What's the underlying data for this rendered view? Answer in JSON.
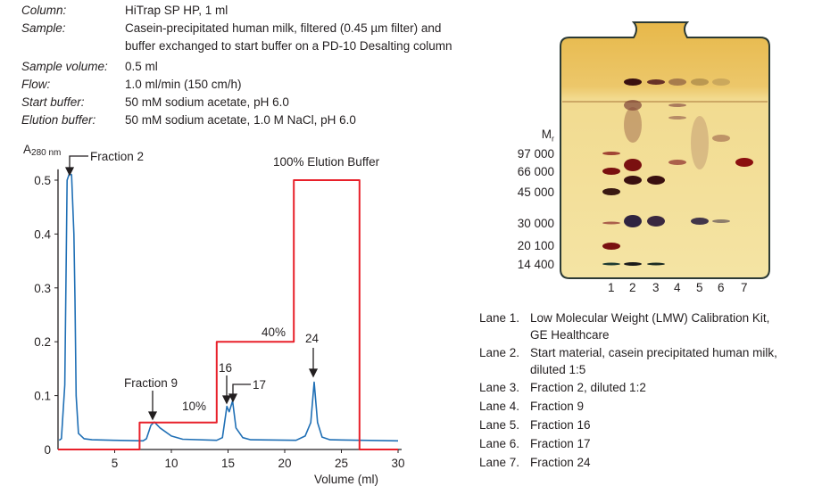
{
  "method": [
    {
      "label": "Column:",
      "value": [
        "HiTrap SP HP, 1 ml"
      ]
    },
    {
      "label": "Sample:",
      "value": [
        "Casein-precipitated human milk, filtered (0.45 µm filter) and",
        "buffer exchanged to start buffer on a PD-10 Desalting column"
      ]
    },
    {
      "label": "Sample volume:",
      "value": [
        "0.5 ml"
      ]
    },
    {
      "label": "Flow:",
      "value": [
        "1.0 ml/min (150 cm/h)"
      ]
    },
    {
      "label": "Start buffer:",
      "value": [
        "50 mM sodium acetate, pH 6.0"
      ]
    },
    {
      "label": "Elution buffer:",
      "value": [
        "50 mM sodium acetate, 1.0 M NaCl, pH 6.0"
      ]
    }
  ],
  "chart_data": {
    "type": "line",
    "ylabel": "A280 nm",
    "ylabel_main": "A",
    "ylabel_sub": "280 nm",
    "xlabel": "Volume (ml)",
    "xlim": [
      0,
      30
    ],
    "ylim": [
      0,
      0.52
    ],
    "xticks": [
      5,
      10,
      15,
      20,
      25,
      30
    ],
    "yticks": [
      0,
      0.1,
      0.2,
      0.3,
      0.4,
      0.5
    ],
    "ytick_labels": [
      "0",
      "0.1",
      "0.2",
      "0.3",
      "0.4",
      "0.5"
    ],
    "grid": false,
    "series": [
      {
        "color": "#1f6fb5",
        "points": [
          [
            0.1,
            0.017
          ],
          [
            0.3,
            0.02
          ],
          [
            0.6,
            0.12
          ],
          [
            0.8,
            0.5
          ],
          [
            1.0,
            0.512
          ],
          [
            1.2,
            0.51
          ],
          [
            1.4,
            0.4
          ],
          [
            1.5,
            0.28
          ],
          [
            1.6,
            0.1
          ],
          [
            1.8,
            0.03
          ],
          [
            2.3,
            0.02
          ],
          [
            3,
            0.018
          ],
          [
            5,
            0.017
          ],
          [
            7.5,
            0.016
          ],
          [
            7.8,
            0.02
          ],
          [
            8.2,
            0.045
          ],
          [
            8.5,
            0.051
          ],
          [
            9,
            0.04
          ],
          [
            10,
            0.025
          ],
          [
            11,
            0.019
          ],
          [
            14,
            0.017
          ],
          [
            14.5,
            0.022
          ],
          [
            14.9,
            0.08
          ],
          [
            15.1,
            0.07
          ],
          [
            15.4,
            0.09
          ],
          [
            15.7,
            0.04
          ],
          [
            16.3,
            0.022
          ],
          [
            17,
            0.018
          ],
          [
            21,
            0.017
          ],
          [
            21.8,
            0.025
          ],
          [
            22.3,
            0.05
          ],
          [
            22.6,
            0.125
          ],
          [
            22.9,
            0.05
          ],
          [
            23.3,
            0.023
          ],
          [
            24,
            0.018
          ],
          [
            30,
            0.016
          ]
        ]
      },
      {
        "color": "#e8202a",
        "points": [
          [
            0,
            0
          ],
          [
            7.2,
            0
          ],
          [
            7.2,
            0.05
          ],
          [
            14.0,
            0.05
          ],
          [
            14.0,
            0.2
          ],
          [
            20.8,
            0.2
          ],
          [
            20.8,
            0.5
          ],
          [
            26.6,
            0.5
          ],
          [
            26.6,
            0
          ],
          [
            30,
            0
          ]
        ]
      }
    ],
    "annotations": {
      "fraction2": "Fraction 2",
      "fraction9": "Fraction 9",
      "f16": "16",
      "f17": "17",
      "f24": "24",
      "step10": "10%",
      "step40": "40%",
      "step100": "100% Elution Buffer"
    }
  },
  "gel": {
    "mr_label": "M",
    "mr_sub": "r",
    "markers": [
      "97 000",
      "66 000",
      "45 000",
      "30 000",
      "20 100",
      "14 400"
    ],
    "lanes": [
      "1",
      "2",
      "3",
      "4",
      "5",
      "6",
      "7"
    ]
  },
  "legend": [
    {
      "lane": "Lane 1.",
      "text": [
        "Low Molecular Weight (LMW) Calibration Kit,",
        "GE Healthcare"
      ]
    },
    {
      "lane": "Lane 2.",
      "text": [
        "Start material, casein precipitated human milk,",
        "diluted 1:5"
      ]
    },
    {
      "lane": "Lane 3.",
      "text": [
        "Fraction 2, diluted 1:2"
      ]
    },
    {
      "lane": "Lane 4.",
      "text": [
        "Fraction 9"
      ]
    },
    {
      "lane": "Lane 5.",
      "text": [
        "Fraction 16"
      ]
    },
    {
      "lane": "Lane 6.",
      "text": [
        "Fraction 17"
      ]
    },
    {
      "lane": "Lane 7.",
      "text": [
        "Fraction 24"
      ]
    }
  ]
}
